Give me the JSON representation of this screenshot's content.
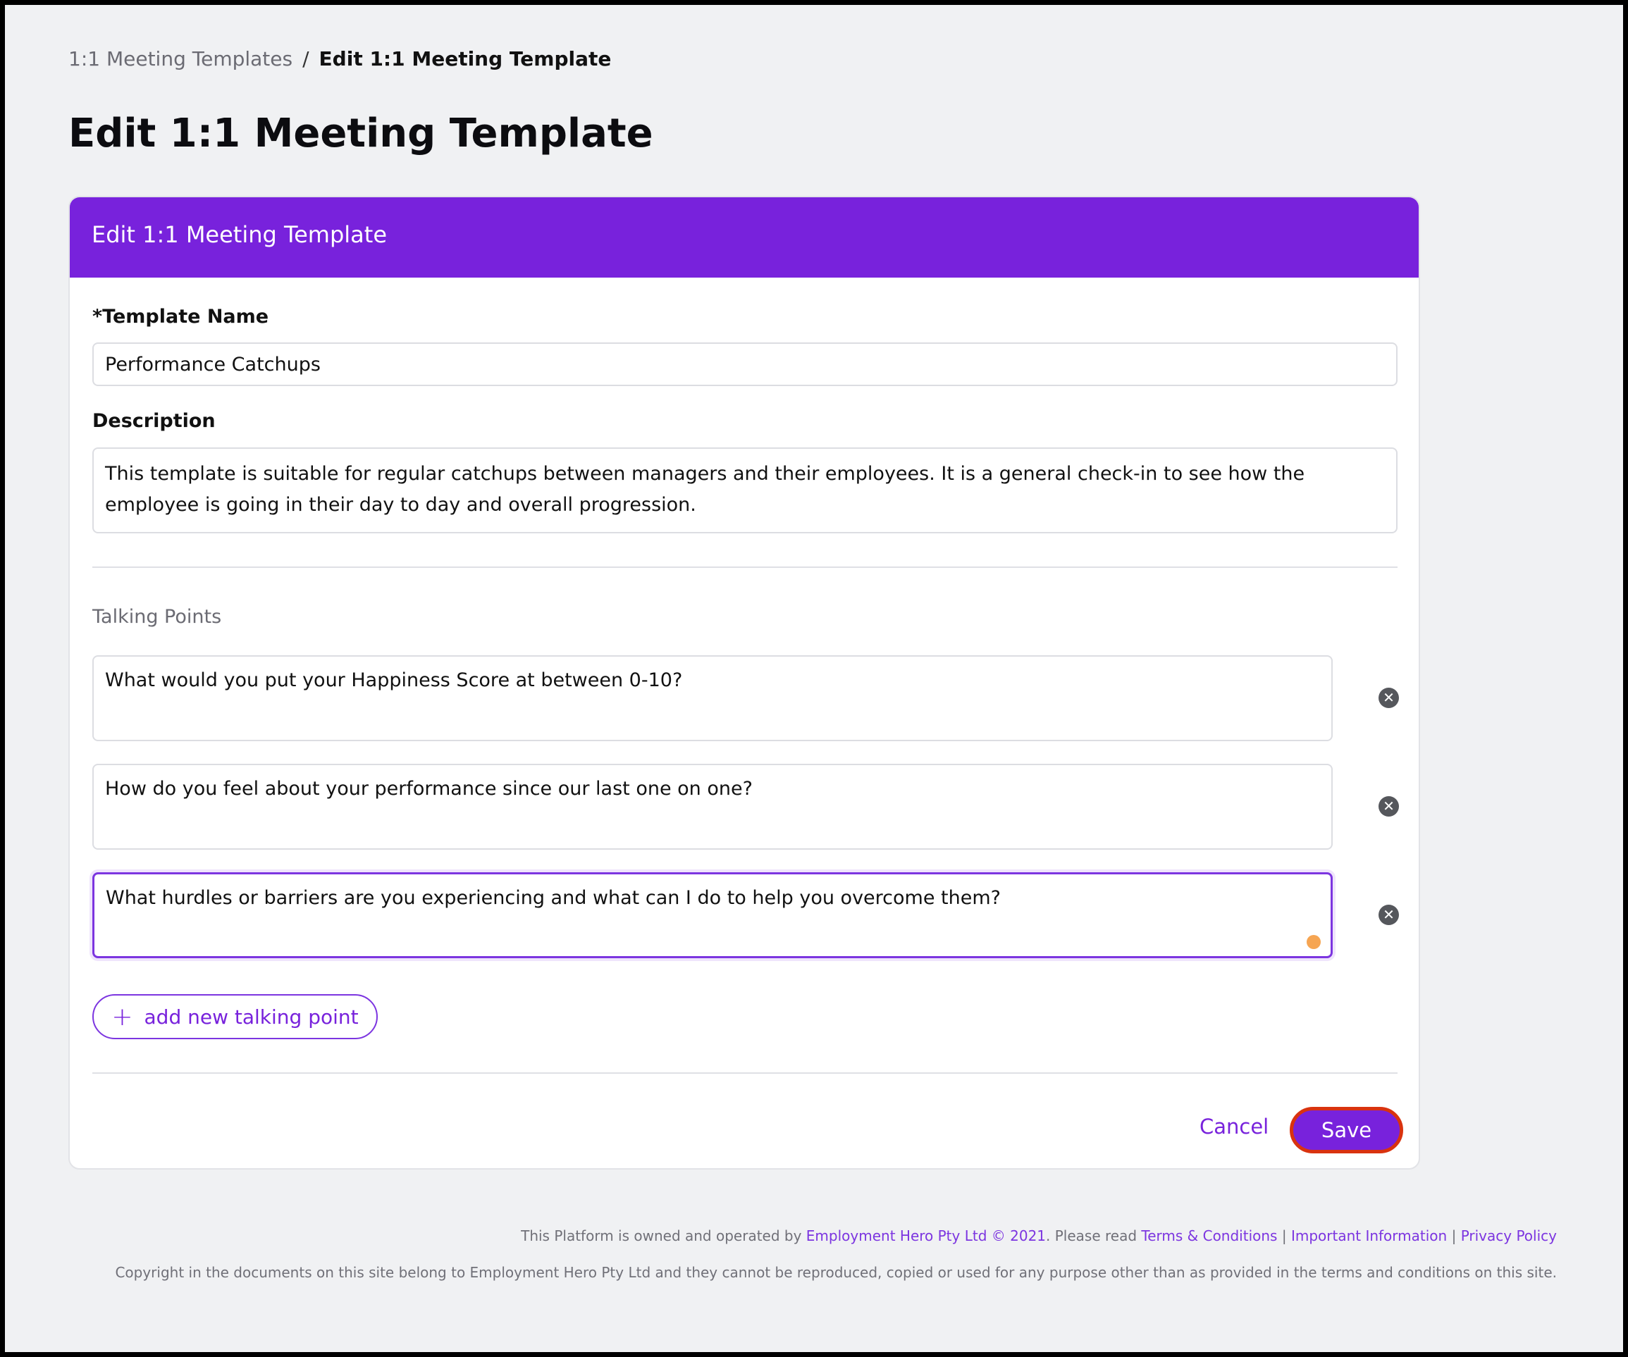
{
  "breadcrumb": {
    "parent": "1:1 Meeting Templates",
    "separator": "/",
    "current": "Edit 1:1 Meeting Template"
  },
  "page_title": "Edit 1:1 Meeting Template",
  "card": {
    "header": "Edit 1:1 Meeting Template",
    "template_name_label": "*Template Name",
    "template_name_value": "Performance Catchups",
    "description_label": "Description",
    "description_value": "This template is suitable for regular catchups between managers and their employees. It is a general check-in to see how the employee is going in their day to day and overall progression.",
    "talking_points_label": "Talking Points",
    "talking_points": [
      "What would you put your Happiness Score at between 0-10?",
      "How do you feel about your performance since our last one on one?",
      "What hurdles or barriers are you experiencing and what can I do to help you overcome them?"
    ],
    "add_button": "add new talking point",
    "cancel": "Cancel",
    "save": "Save"
  },
  "footer": {
    "line1_prefix": "This Platform is owned and operated by",
    "company_link": "Employment Hero Pty Ltd © 2021",
    "line1_mid": ". Please read",
    "terms": "Terms & Conditions",
    "important": "Important Information",
    "privacy": "Privacy Policy",
    "pipe": "|",
    "line2": "Copyright in the documents on this site belong to Employment Hero Pty Ltd and they cannot be reproduced, copied or used for any purpose other than as provided in the terms and conditions on this site."
  },
  "colors": {
    "brand": "#7822dc",
    "save_outline": "#d9330f",
    "indicator": "#f6a552"
  }
}
